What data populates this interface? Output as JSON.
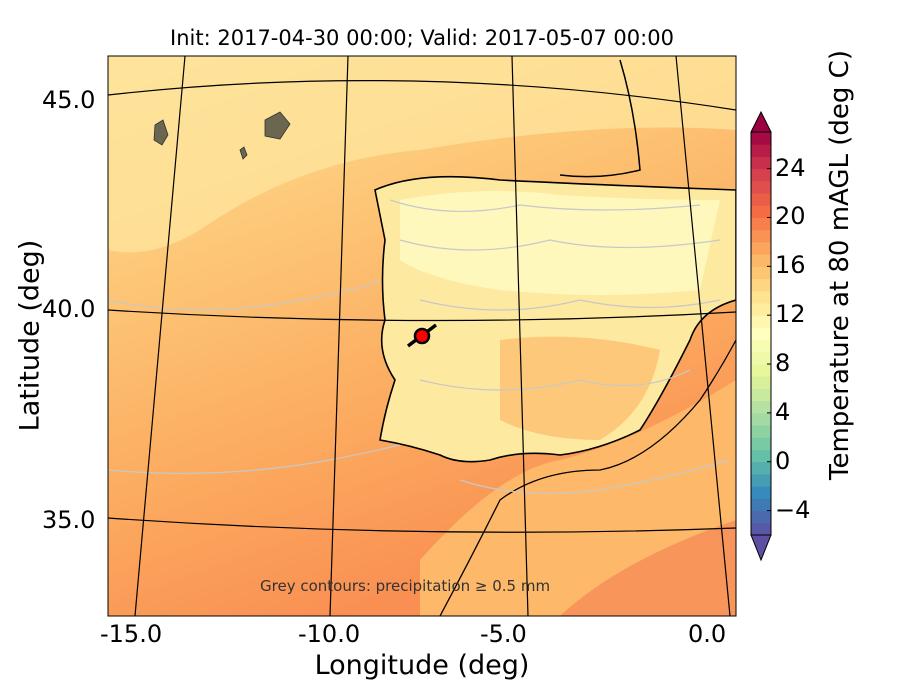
{
  "chart_data": {
    "type": "heatmap",
    "title": "Init: 2017-04-30 00:00; Valid: 2017-05-07 00:00",
    "xlabel": "Longitude (deg)",
    "ylabel": "Latitude (deg)",
    "xlim": [
      -16,
      0.1
    ],
    "ylim": [
      32.8,
      46.1
    ],
    "xticks": [
      "-15.0",
      "-10.0",
      "-5.0",
      "0.0"
    ],
    "yticks": [
      "35.0",
      "40.0",
      "45.0"
    ],
    "colorbar": {
      "label": "Temperature at 80 mAGL (deg C)",
      "ticks": [
        "24",
        "20",
        "16",
        "12",
        "8",
        "4",
        "0",
        "−4"
      ],
      "range": [
        -6,
        27
      ],
      "colormap": [
        "#5e4fa2",
        "#3288bd",
        "#66c2a5",
        "#abdda4",
        "#e6f598",
        "#ffffbf",
        "#fee08b",
        "#fdae61",
        "#f46d43",
        "#d53e4f",
        "#9e0142"
      ]
    },
    "annotation": "Grey contours: precipitation ≥ 0.5 mm",
    "marker": {
      "lon": -7.6,
      "lat": 39.4,
      "color": "#ff0000"
    }
  }
}
